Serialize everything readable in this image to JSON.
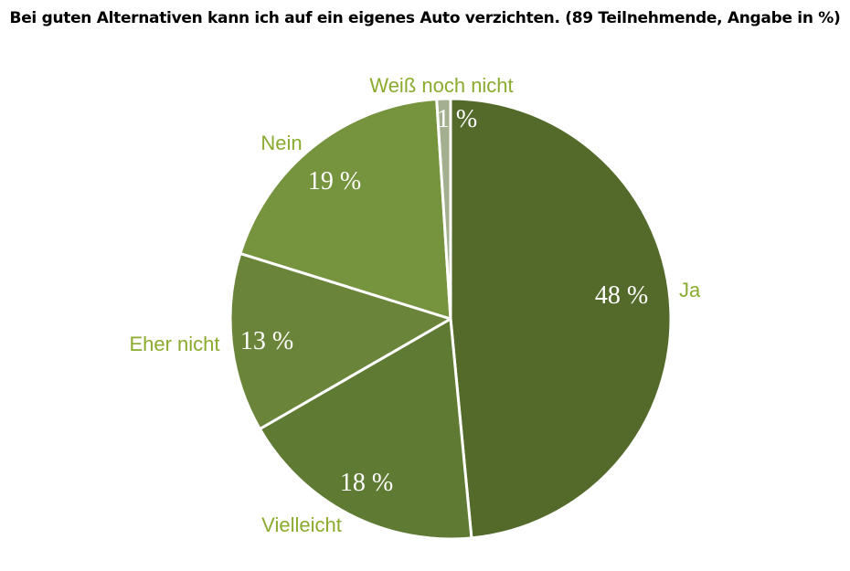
{
  "chart_data": {
    "type": "pie",
    "title": "Bei guten Alternativen kann ich auf ein eigenes Auto verzichten. (89 Teilnehmende, Angabe in %)",
    "slices": [
      {
        "label": "Ja",
        "value": 48,
        "value_label": "48 %",
        "color": "#546a2b"
      },
      {
        "label": "Vielleicht",
        "value": 18,
        "value_label": "18 %",
        "color": "#5f7a32"
      },
      {
        "label": "Eher nicht",
        "value": 13,
        "value_label": "13 %",
        "color": "#6a853a"
      },
      {
        "label": "Nein",
        "value": 19,
        "value_label": "19 %",
        "color": "#76933e"
      },
      {
        "label": "Weiß noch nicht",
        "value": 1,
        "value_label": "1 %",
        "color": "#a3af8f"
      }
    ],
    "label_color": "#8aab2e",
    "start": "12 o'clock",
    "direction": "clockwise"
  }
}
